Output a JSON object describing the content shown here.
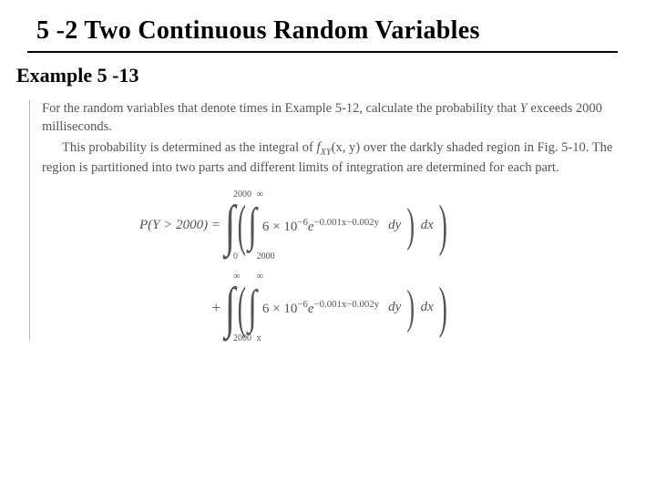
{
  "heading": "5 -2 Two Continuous Random Variables",
  "example_label": "Example 5 -13",
  "para1_a": "For the random variables that denote times in Example 5-12, calculate the probability that ",
  "para1_var": "Y",
  "para1_b": " exceeds 2000 milliseconds.",
  "para2_a": "This probability is determined as the integral of ",
  "para2_fn": "f",
  "para2_sub": "XY",
  "para2_args": "(x, y)",
  "para2_b": " over the darkly shaded region in Fig. 5-10. The region is partitioned into two parts and different limits of integration are determined for each part.",
  "lhs": "P(Y > 2000)  =",
  "plus": "+",
  "int1": {
    "outer_low": "0",
    "outer_up": "2000",
    "inner_low": "2000",
    "inner_up": "∞"
  },
  "int2": {
    "outer_low": "2000",
    "outer_up": "∞",
    "inner_low": "x",
    "inner_up": "∞"
  },
  "integrand_a": "6 × 10",
  "integrand_exp_a": "−6",
  "integrand_e": "e",
  "integrand_exp_b": "−0.001x−0.002y",
  "dy": "dy",
  "dx": "dx",
  "colors": {
    "text_body": "#555555",
    "text_head": "#000000",
    "rule": "#b9b9b9",
    "bg": "#ffffff"
  },
  "fontsize": {
    "heading": 28,
    "example": 22,
    "body": 14.5,
    "eqn": 15
  }
}
